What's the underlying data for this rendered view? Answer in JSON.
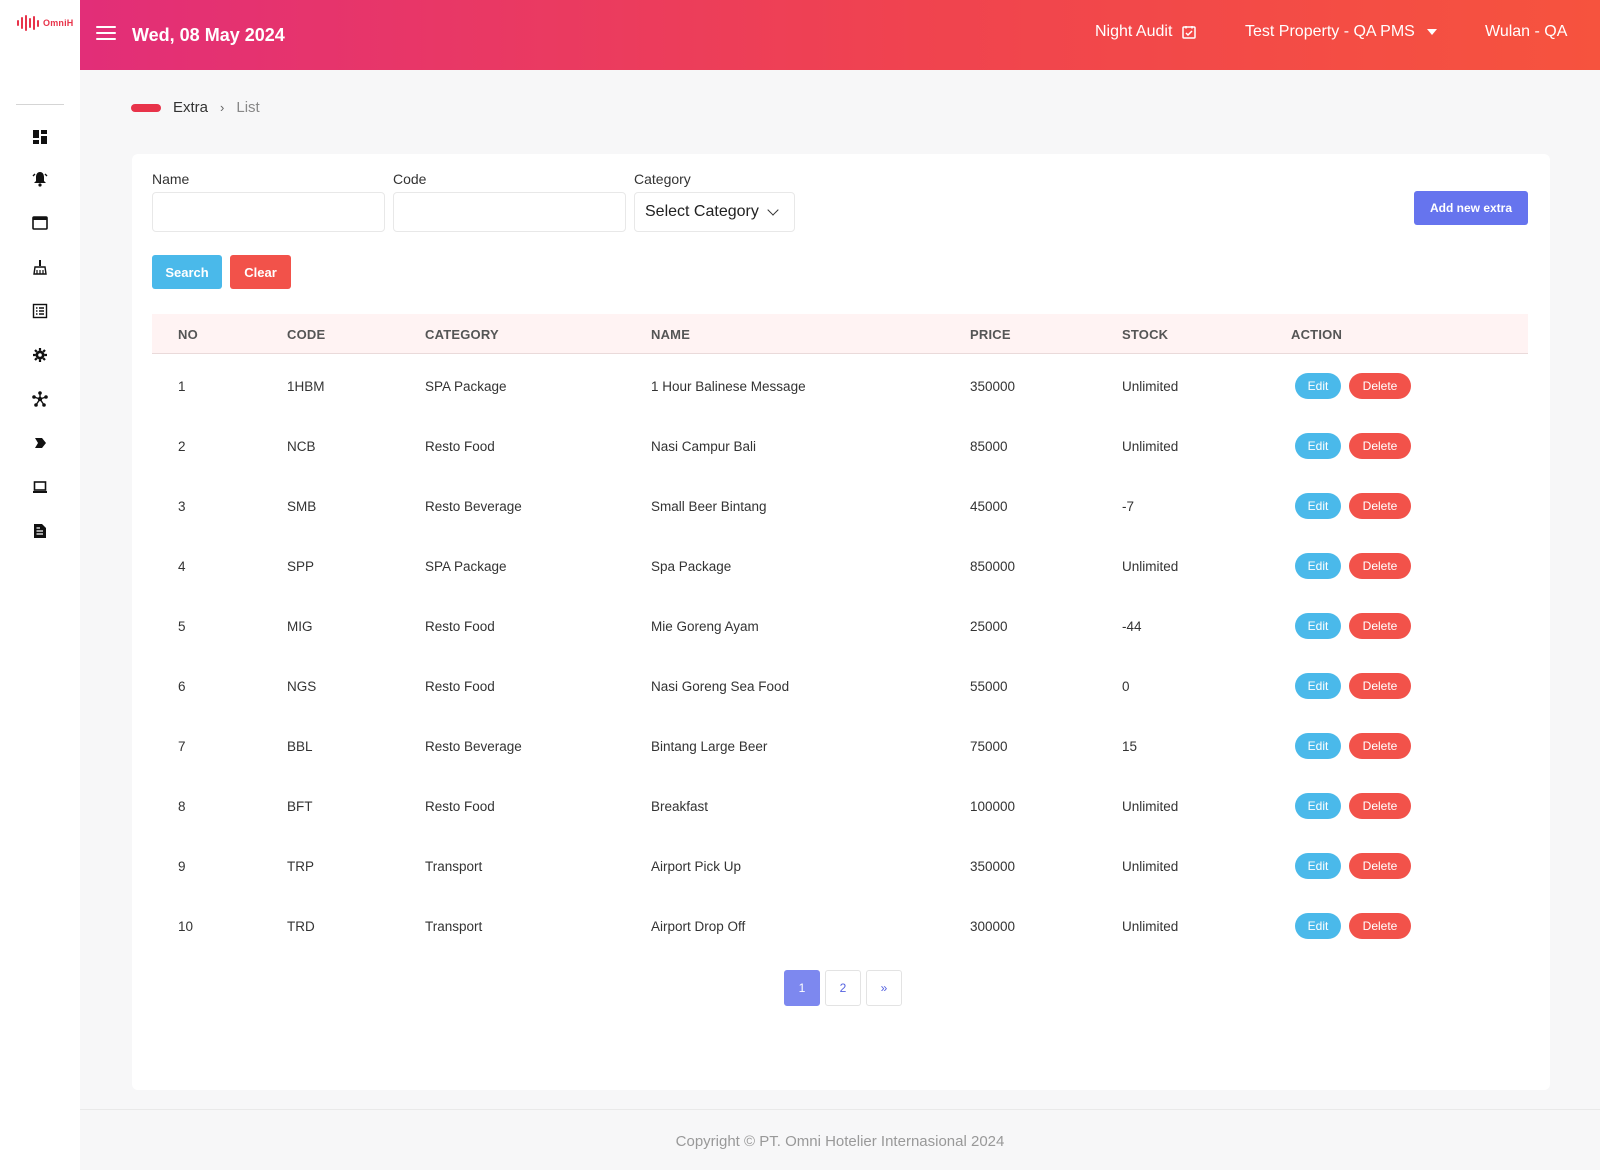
{
  "brand": {
    "logo_text": "OmniH",
    "accent": "#e8334a"
  },
  "sidebar": {
    "items": [
      {
        "icon": "dashboard-icon"
      },
      {
        "icon": "bell-icon"
      },
      {
        "icon": "window-icon"
      },
      {
        "icon": "broom-icon"
      },
      {
        "icon": "list-icon"
      },
      {
        "icon": "gear-icon"
      },
      {
        "icon": "nodes-icon"
      },
      {
        "icon": "tag-icon"
      },
      {
        "icon": "laptop-icon"
      },
      {
        "icon": "document-icon"
      }
    ]
  },
  "header": {
    "date": "Wed, 08 May 2024",
    "night_audit": "Night Audit",
    "property": "Test Property - QA PMS",
    "user": "Wulan - QA"
  },
  "breadcrumb": {
    "section": "Extra",
    "page": "List"
  },
  "filters": {
    "name_label": "Name",
    "name_value": "",
    "code_label": "Code",
    "code_value": "",
    "category_label": "Category",
    "category_value": "Select Category",
    "search_label": "Search",
    "clear_label": "Clear",
    "add_label": "Add new extra"
  },
  "table": {
    "headers": [
      "NO",
      "CODE",
      "CATEGORY",
      "NAME",
      "PRICE",
      "STOCK",
      "ACTION"
    ],
    "edit_label": "Edit",
    "delete_label": "Delete",
    "rows": [
      {
        "no": "1",
        "code": "1HBM",
        "category": "SPA Package",
        "name": "1 Hour Balinese Message",
        "price": "350000",
        "stock": "Unlimited"
      },
      {
        "no": "2",
        "code": "NCB",
        "category": "Resto Food",
        "name": "Nasi Campur Bali",
        "price": "85000",
        "stock": "Unlimited"
      },
      {
        "no": "3",
        "code": "SMB",
        "category": "Resto Beverage",
        "name": "Small Beer Bintang",
        "price": "45000",
        "stock": "-7"
      },
      {
        "no": "4",
        "code": "SPP",
        "category": "SPA Package",
        "name": "Spa Package",
        "price": "850000",
        "stock": "Unlimited"
      },
      {
        "no": "5",
        "code": "MIG",
        "category": "Resto Food",
        "name": "Mie Goreng Ayam",
        "price": "25000",
        "stock": "-44"
      },
      {
        "no": "6",
        "code": "NGS",
        "category": "Resto Food",
        "name": "Nasi Goreng Sea Food",
        "price": "55000",
        "stock": "0"
      },
      {
        "no": "7",
        "code": "BBL",
        "category": "Resto Beverage",
        "name": "Bintang Large Beer",
        "price": "75000",
        "stock": "15"
      },
      {
        "no": "8",
        "code": "BFT",
        "category": "Resto Food",
        "name": "Breakfast",
        "price": "100000",
        "stock": "Unlimited"
      },
      {
        "no": "9",
        "code": "TRP",
        "category": "Transport",
        "name": "Airport Pick Up",
        "price": "350000",
        "stock": "Unlimited"
      },
      {
        "no": "10",
        "code": "TRD",
        "category": "Transport",
        "name": "Airport Drop Off",
        "price": "300000",
        "stock": "Unlimited"
      }
    ]
  },
  "pagination": {
    "pages": [
      "1",
      "2"
    ],
    "next": "»",
    "current": "1"
  },
  "footer": {
    "copyright": "Copyright © PT. Omni Hotelier Internasional 2024"
  }
}
